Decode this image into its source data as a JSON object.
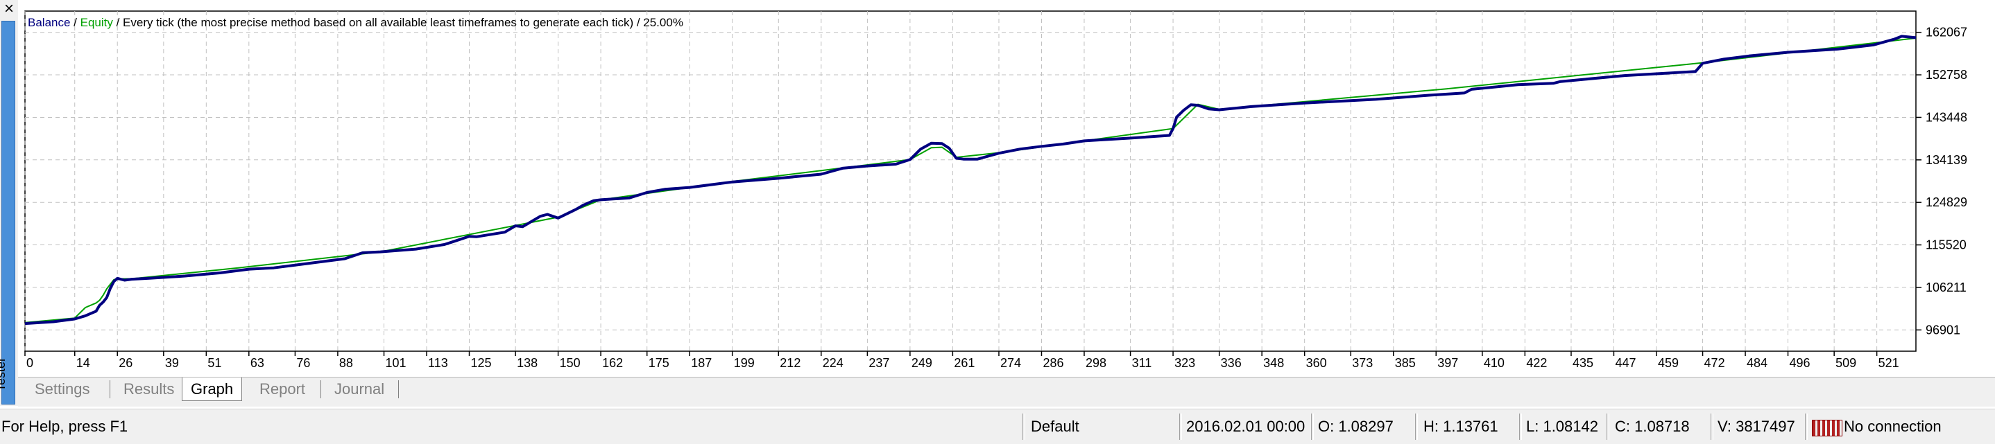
{
  "window": {
    "close_icon": "×",
    "panel_title": "Tester"
  },
  "chart": {
    "legend": {
      "balance": "Balance",
      "separator1": " / ",
      "equity": "Equity",
      "separator2": " / ",
      "model": "Every tick (the most precise method based on all available least timeframes to generate each tick) / 25.00%"
    },
    "colors": {
      "balance": "#000080",
      "equity": "#00a000",
      "grid": "#c0c0c0",
      "axis": "#000000"
    },
    "y_ticks": [
      "162067",
      "152758",
      "143448",
      "134139",
      "124829",
      "115520",
      "106211",
      "96901"
    ],
    "x_ticks": [
      "0",
      "14",
      "26",
      "39",
      "51",
      "63",
      "76",
      "88",
      "101",
      "113",
      "125",
      "138",
      "150",
      "162",
      "175",
      "187",
      "199",
      "212",
      "224",
      "237",
      "249",
      "261",
      "274",
      "286",
      "298",
      "311",
      "323",
      "336",
      "348",
      "360",
      "373",
      "385",
      "397",
      "410",
      "422",
      "435",
      "447",
      "459",
      "472",
      "484",
      "496",
      "509",
      "521"
    ]
  },
  "chart_data": {
    "type": "line",
    "title": "Balance / Equity / Every tick (the most precise method based on all available least timeframes to generate each tick) / 25.00%",
    "xlabel": "",
    "ylabel": "",
    "xlim": [
      0,
      532
    ],
    "ylim": [
      92246,
      166722
    ],
    "grid": true,
    "series": [
      {
        "name": "Balance",
        "x": [
          0,
          8,
          14,
          17,
          20,
          21,
          22,
          23,
          24,
          25,
          26,
          28,
          30,
          35,
          45,
          55,
          63,
          70,
          80,
          90,
          95,
          100,
          110,
          118,
          120,
          125,
          127,
          135,
          138,
          140,
          145,
          147,
          150,
          155,
          157,
          160,
          162,
          170,
          175,
          180,
          187,
          199,
          212,
          224,
          230,
          237,
          245,
          249,
          252,
          255,
          258,
          260,
          262,
          264,
          268,
          274,
          280,
          286,
          292,
          298,
          311,
          322,
          323,
          324,
          326,
          328,
          330,
          333,
          336,
          345,
          360,
          380,
          395,
          405,
          407,
          420,
          430,
          432,
          450,
          470,
          472,
          478,
          485,
          496,
          510,
          520,
          526,
          528,
          532
        ],
        "y": [
          98300,
          98700,
          99300,
          100000,
          101000,
          102300,
          103000,
          104000,
          106000,
          107500,
          108200,
          107800,
          108000,
          108200,
          108700,
          109400,
          110200,
          110500,
          111500,
          112500,
          113800,
          114000,
          114600,
          115600,
          116100,
          117400,
          117300,
          118300,
          119700,
          119500,
          121800,
          122200,
          121400,
          123300,
          124200,
          125200,
          125400,
          125800,
          127000,
          127700,
          128100,
          129300,
          130100,
          131000,
          132300,
          132800,
          133200,
          134200,
          136500,
          137800,
          137700,
          136700,
          134500,
          134300,
          134300,
          135600,
          136500,
          137100,
          137600,
          138300,
          138900,
          139500,
          141000,
          143500,
          145000,
          146200,
          146100,
          145300,
          145100,
          145800,
          146600,
          147400,
          148300,
          148800,
          149600,
          150600,
          150900,
          151300,
          152600,
          153500,
          155300,
          156200,
          156900,
          157700,
          158400,
          159300,
          160600,
          161200,
          160900
        ]
      },
      {
        "name": "Equity",
        "x": [
          0,
          14,
          17,
          20,
          21,
          22,
          23,
          24,
          25,
          26,
          30,
          60,
          100,
          150,
          162,
          200,
          249,
          255,
          258,
          262,
          274,
          323,
          330,
          336,
          400,
          472,
          532
        ],
        "y": [
          98500,
          99500,
          101800,
          102800,
          103400,
          104500,
          105900,
          106900,
          107900,
          108100,
          108100,
          110500,
          114000,
          121600,
          125400,
          129500,
          134200,
          136800,
          136900,
          134700,
          135700,
          141000,
          146300,
          145200,
          149700,
          155400,
          160800
        ]
      }
    ]
  },
  "tabs": [
    {
      "label": "Settings",
      "active": false
    },
    {
      "label": "Results",
      "active": false
    },
    {
      "label": "Graph",
      "active": true
    },
    {
      "label": "Report",
      "active": false
    },
    {
      "label": "Journal",
      "active": false
    }
  ],
  "status": {
    "help": "For Help, press F1",
    "profile": "Default",
    "datetime": "2016.02.01 00:00",
    "open": "O: 1.08297",
    "high": "H: 1.13761",
    "low": "L: 1.08142",
    "close": "C: 1.08718",
    "volume": "V: 3817497",
    "connection": "No connection",
    "connection_icon": "connection-bars-icon"
  }
}
